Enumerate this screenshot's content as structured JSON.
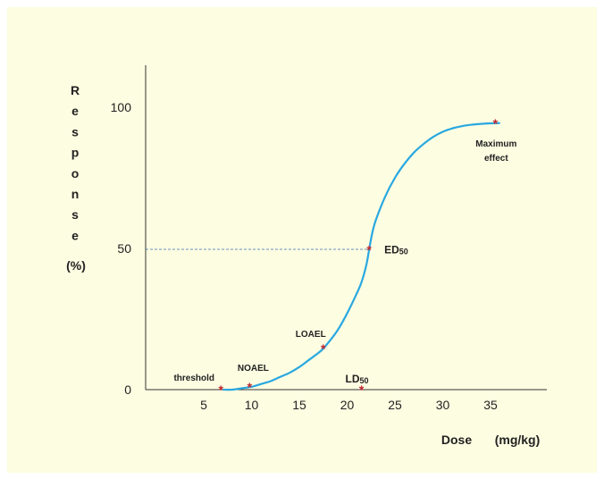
{
  "chart_data": {
    "type": "line",
    "xlabel": "Dose",
    "xunit": "(mg/kg)",
    "ylabel": "Response",
    "yunit": "(%)",
    "x_ticks": [
      5,
      10,
      15,
      20,
      25,
      30,
      35
    ],
    "y_ticks": [
      0,
      50,
      100
    ],
    "xlim": [
      0,
      40
    ],
    "ylim": [
      0,
      115
    ],
    "line_color": "#29a8e0",
    "marker_color": "#c0262d",
    "curve": {
      "x": [
        7,
        8,
        9,
        10,
        11,
        12,
        13,
        14,
        15,
        16,
        17,
        17.5,
        18,
        19,
        20,
        21,
        21.5,
        22,
        22.3,
        22.6,
        23,
        24,
        25,
        26,
        27,
        28,
        29,
        30,
        31,
        32,
        33,
        34,
        35,
        36
      ],
      "y": [
        0,
        0,
        0.5,
        1,
        2,
        3,
        4.5,
        6,
        8,
        10.5,
        13,
        14.5,
        16.5,
        21,
        27,
        34,
        38,
        44,
        49.5,
        55,
        60,
        68.5,
        75,
        80,
        84,
        87,
        89.5,
        91.3,
        92.5,
        93.3,
        93.8,
        94.1,
        94.3,
        94.4
      ]
    },
    "points": [
      {
        "label": "threshold",
        "x": 6.8,
        "y": 0
      },
      {
        "label": "NOAEL",
        "x": 9.8,
        "y": 1
      },
      {
        "label": "LOAEL",
        "x": 17.5,
        "y": 14.5
      },
      {
        "label": "ED",
        "sub": "50",
        "x": 22.3,
        "y": 49.5
      },
      {
        "label": "LD",
        "sub": "50",
        "x": 21.5,
        "y": 0
      },
      {
        "label": "Maximum",
        "label2": "effect",
        "x": 35.5,
        "y": 94.3
      }
    ],
    "reference_line": {
      "y": 50,
      "to_x": 22.3
    }
  }
}
